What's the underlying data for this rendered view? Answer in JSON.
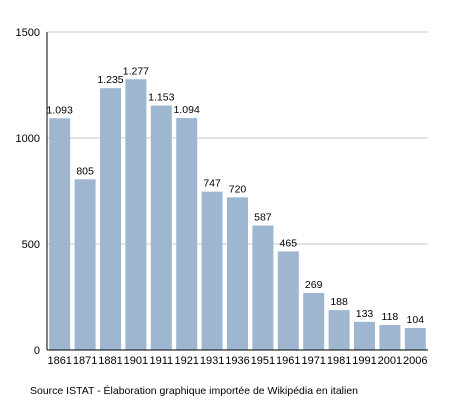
{
  "chart_data": {
    "type": "bar",
    "categories": [
      "1861",
      "1871",
      "1881",
      "1901",
      "1911",
      "1921",
      "1931",
      "1936",
      "1951",
      "1961",
      "1971",
      "1981",
      "1991",
      "2001",
      "2006"
    ],
    "values": [
      1093,
      805,
      1235,
      1277,
      1153,
      1094,
      747,
      720,
      587,
      465,
      269,
      188,
      133,
      118,
      104
    ],
    "data_labels": [
      "1.093",
      "805",
      "1.235",
      "1.277",
      "1.153",
      "1.094",
      "747",
      "720",
      "587",
      "465",
      "269",
      "188",
      "133",
      "118",
      "104"
    ],
    "title": "",
    "xlabel": "",
    "ylabel": "",
    "ylim": [
      0,
      1500
    ],
    "yticks": [
      0,
      500,
      1000,
      1500
    ],
    "ytick_labels": [
      "0",
      "500",
      "1000",
      "1500"
    ],
    "grid": true,
    "colors": {
      "bar": "#9fb6d1",
      "grid": "#c8c8c8",
      "axis": "#000000"
    }
  },
  "source": "Source ISTAT - Élaboration graphique importée de Wikipédia en italien"
}
